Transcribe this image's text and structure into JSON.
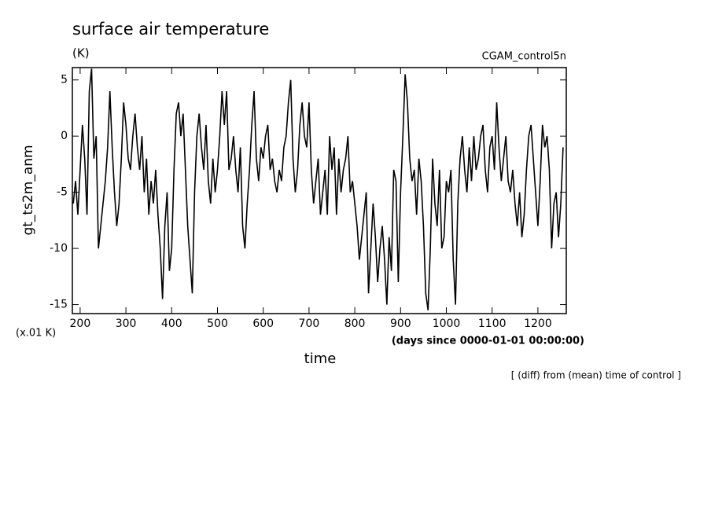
{
  "chart_data": {
    "type": "line",
    "title": "surface air temperature",
    "units": "(K)",
    "run_label": "CGAM_control5n",
    "y_label": "gt_ts2m_anm",
    "scale_note": "(x.01 K)",
    "x_units": "(days since 0000-01-01 00:00:00)",
    "x_label": "time",
    "footnote": "[ (diff) from (mean) time of control ]",
    "xlim": [
      183,
      1262
    ],
    "xticks": [
      200,
      300,
      400,
      500,
      600,
      700,
      800,
      900,
      1000,
      1100,
      1200
    ],
    "ylim": [
      -15.8,
      6.1
    ],
    "yticks": [
      -15,
      -10,
      -5,
      0,
      5
    ],
    "x": [
      185,
      190,
      195,
      200,
      205,
      210,
      215,
      220,
      225,
      230,
      235,
      240,
      245,
      250,
      255,
      260,
      265,
      270,
      275,
      280,
      285,
      290,
      295,
      300,
      305,
      310,
      315,
      320,
      325,
      330,
      335,
      340,
      345,
      350,
      355,
      360,
      365,
      370,
      375,
      380,
      385,
      390,
      395,
      400,
      405,
      410,
      415,
      420,
      425,
      430,
      435,
      440,
      445,
      450,
      455,
      460,
      465,
      470,
      475,
      480,
      485,
      490,
      495,
      500,
      505,
      510,
      515,
      520,
      525,
      530,
      535,
      540,
      545,
      550,
      555,
      560,
      565,
      570,
      575,
      580,
      585,
      590,
      595,
      600,
      605,
      610,
      615,
      620,
      625,
      630,
      635,
      640,
      645,
      650,
      655,
      660,
      665,
      670,
      675,
      680,
      685,
      690,
      695,
      700,
      705,
      710,
      715,
      720,
      725,
      730,
      735,
      740,
      745,
      750,
      755,
      760,
      765,
      770,
      775,
      780,
      785,
      790,
      795,
      800,
      805,
      810,
      815,
      820,
      825,
      830,
      835,
      840,
      845,
      850,
      855,
      860,
      865,
      870,
      875,
      880,
      885,
      890,
      895,
      900,
      905,
      910,
      915,
      920,
      925,
      930,
      935,
      940,
      945,
      950,
      955,
      960,
      965,
      970,
      975,
      980,
      985,
      990,
      995,
      1000,
      1005,
      1010,
      1015,
      1020,
      1025,
      1030,
      1035,
      1040,
      1045,
      1050,
      1055,
      1060,
      1065,
      1070,
      1075,
      1080,
      1085,
      1090,
      1095,
      1100,
      1105,
      1110,
      1115,
      1120,
      1125,
      1130,
      1135,
      1140,
      1145,
      1150,
      1155,
      1160,
      1165,
      1170,
      1175,
      1180,
      1185,
      1190,
      1195,
      1200,
      1205,
      1210,
      1215,
      1220,
      1225,
      1230,
      1235,
      1240,
      1245,
      1250,
      1255
    ],
    "series": [
      {
        "color": "#000000",
        "values": [
          -6,
          -4,
          -7,
          -3,
          1,
          -2,
          -7,
          4,
          6,
          -2,
          0,
          -10,
          -8,
          -6,
          -4,
          -1,
          4,
          -1,
          -5,
          -8,
          -6,
          -2,
          3,
          1,
          -2,
          -3,
          0,
          2,
          -1,
          -3,
          0,
          -5,
          -2,
          -7,
          -4,
          -6,
          -3,
          -7,
          -10,
          -14.5,
          -8,
          -5,
          -12,
          -10,
          -3,
          2,
          3,
          0,
          2,
          -3,
          -8,
          -11,
          -14,
          -5,
          0,
          2,
          -1,
          -3,
          1,
          -4,
          -6,
          -2,
          -5,
          -3,
          0,
          4,
          1,
          4,
          -3,
          -2,
          0,
          -3,
          -5,
          -1,
          -8,
          -10,
          -6,
          -3,
          1,
          4,
          -2,
          -4,
          -1,
          -2,
          0,
          1,
          -3,
          -2,
          -4,
          -5,
          -3,
          -4,
          -1,
          0,
          3,
          5,
          -2,
          -5,
          -3,
          1,
          3,
          0,
          -1,
          3,
          -3,
          -6,
          -4,
          -2,
          -7,
          -5,
          -3,
          -7,
          0,
          -3,
          -1,
          -7,
          -2,
          -5,
          -3,
          -2,
          0,
          -5,
          -4,
          -6,
          -8,
          -11,
          -9,
          -7,
          -5,
          -14,
          -10,
          -6,
          -9,
          -13,
          -10,
          -8,
          -11,
          -15,
          -9,
          -12,
          -3,
          -4,
          -13,
          -5,
          0,
          5.5,
          3,
          -2,
          -4,
          -3,
          -7,
          -2,
          -4,
          -8,
          -14,
          -15.5,
          -10,
          -2,
          -6,
          -8,
          -3,
          -10,
          -9,
          -4,
          -5,
          -3,
          -11,
          -15,
          -6,
          -2,
          0,
          -3,
          -5,
          -1,
          -4,
          0,
          -3,
          -2,
          0,
          1,
          -3,
          -5,
          -1,
          0,
          -3,
          3,
          -1,
          -4,
          -2,
          0,
          -4,
          -5,
          -3,
          -6,
          -8,
          -5,
          -9,
          -7,
          -3,
          0,
          1,
          -2,
          -5,
          -8,
          -4,
          1,
          -1,
          0,
          -3,
          -10,
          -6,
          -5,
          -9,
          -6,
          -1
        ]
      }
    ]
  }
}
